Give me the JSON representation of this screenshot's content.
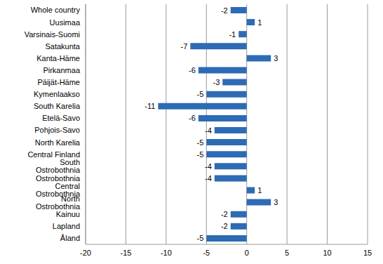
{
  "chart_data": {
    "type": "bar",
    "orientation": "horizontal",
    "categories": [
      "Whole country",
      "Uusimaa",
      "Varsinais-Suomi",
      "Satakunta",
      "Kanta-Häme",
      "Pirkanmaa",
      "Päijät-Häme",
      "Kymenlaakso",
      "South Karelia",
      "Etelä-Savo",
      "Pohjois-Savo",
      "North Karelia",
      "Central Finland",
      "South Ostrobothnia",
      "Ostrobothnia",
      "Central Ostrobothnia",
      "North Ostrobothnia",
      "Kainuu",
      "Lapland",
      "Åland"
    ],
    "values": [
      -2,
      1,
      -1,
      -7,
      3,
      -6,
      -3,
      -5,
      -11,
      -6,
      -4,
      -5,
      -5,
      -4,
      -4,
      1,
      3,
      -2,
      -2,
      -5
    ],
    "color": "#2d6bb4",
    "xlim": [
      -20,
      15
    ],
    "xticks": [
      -20,
      -15,
      -10,
      -5,
      0,
      5,
      10,
      15
    ],
    "grid": true,
    "data_labels": true
  }
}
